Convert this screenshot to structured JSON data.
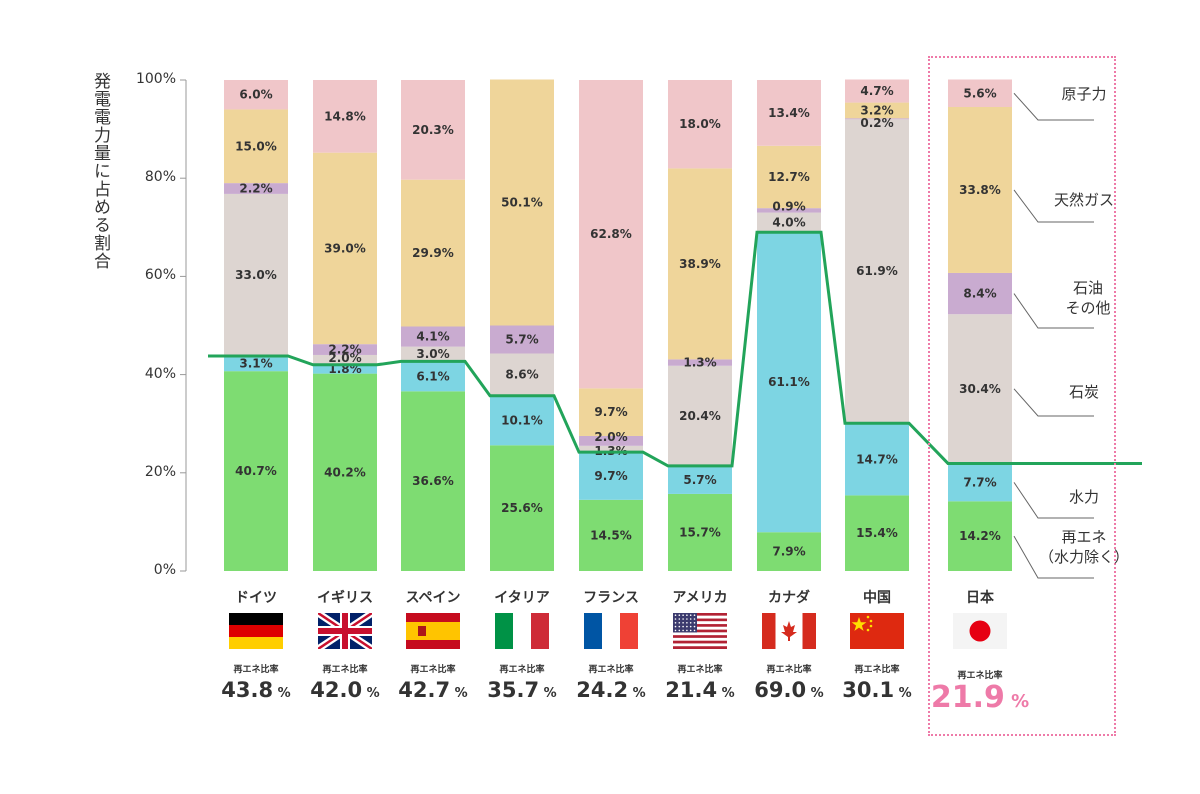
{
  "axis": {
    "title": "発電電力量に占める割合",
    "ticks": [
      "0%",
      "20%",
      "40%",
      "60%",
      "80%",
      "100%"
    ]
  },
  "ratio_caption": "再エネ比率",
  "colors": {
    "renewable": "#7edc72",
    "hydro": "#7dd5e3",
    "coal": "#ddd5d1",
    "oil": "#c9abd0",
    "gas": "#efd59a",
    "nuclear": "#f0c6c9",
    "line": "#22a45a",
    "highlight": "#ee7aa8"
  },
  "legend": [
    {
      "key": "nuclear",
      "label": "原子力"
    },
    {
      "key": "gas",
      "label": "天然ガス"
    },
    {
      "key": "oil",
      "label": "石油\nその他"
    },
    {
      "key": "coal",
      "label": "石炭"
    },
    {
      "key": "hydro",
      "label": "水力"
    },
    {
      "key": "renewable",
      "label": "再エネ\n（水力除く）"
    }
  ],
  "chart_data": {
    "type": "bar",
    "stacked": true,
    "ylim": [
      0,
      100
    ],
    "ylabel": "発電電力量に占める割合",
    "categories": [
      "ドイツ",
      "イギリス",
      "スペイン",
      "イタリア",
      "フランス",
      "アメリカ",
      "カナダ",
      "中国",
      "日本"
    ],
    "series": [
      {
        "name": "再エネ（水力除く）",
        "key": "renewable",
        "values": [
          40.7,
          40.2,
          36.6,
          25.6,
          14.5,
          15.7,
          7.9,
          15.4,
          14.2
        ]
      },
      {
        "name": "水力",
        "key": "hydro",
        "values": [
          3.1,
          1.8,
          6.1,
          10.1,
          9.7,
          5.7,
          61.1,
          14.7,
          7.7
        ]
      },
      {
        "name": "石炭",
        "key": "coal",
        "values": [
          33.0,
          2.0,
          3.0,
          8.6,
          1.3,
          20.4,
          4.0,
          61.9,
          30.4
        ]
      },
      {
        "name": "石油その他",
        "key": "oil",
        "values": [
          2.2,
          2.2,
          4.1,
          5.7,
          2.0,
          1.3,
          0.9,
          0.2,
          8.4
        ]
      },
      {
        "name": "天然ガス",
        "key": "gas",
        "values": [
          15.0,
          39.0,
          29.9,
          50.1,
          9.7,
          38.9,
          12.7,
          3.2,
          33.8
        ]
      },
      {
        "name": "原子力",
        "key": "nuclear",
        "values": [
          6.0,
          14.8,
          20.3,
          0,
          62.8,
          18.0,
          13.4,
          4.7,
          5.6
        ]
      }
    ],
    "renewable_ratio": [
      43.8,
      42.0,
      42.7,
      35.7,
      24.2,
      21.4,
      69.0,
      30.1,
      21.9
    ],
    "highlight": "日本"
  }
}
